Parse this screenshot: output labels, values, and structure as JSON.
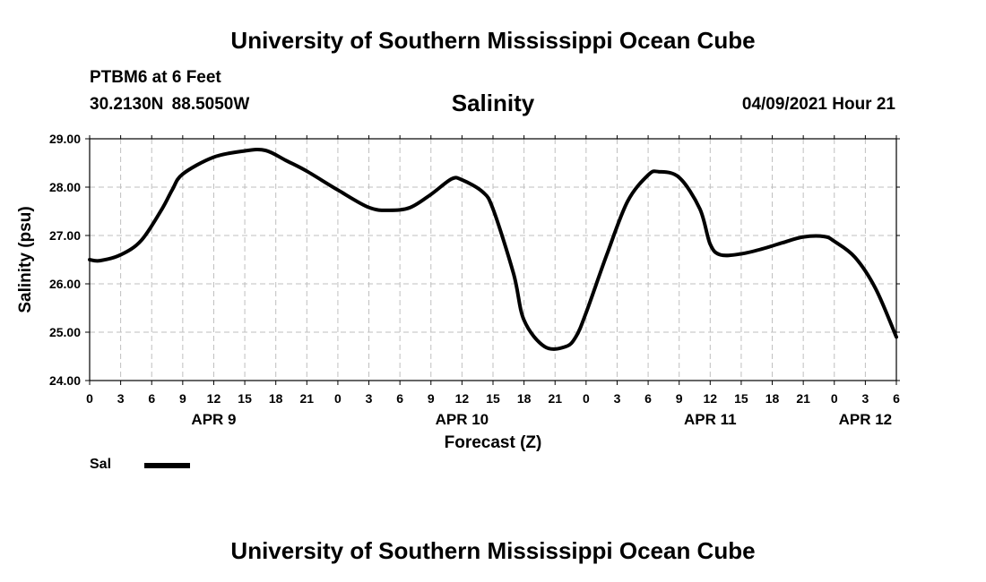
{
  "header": {
    "title_top": "University of Southern Mississippi Ocean Cube",
    "station": "PTBM6 at 6 Feet",
    "coords": "30.2130N  88.5050W",
    "chart_title": "Salinity",
    "date": "04/09/2021 Hour 21"
  },
  "footer": {
    "title_bottom": "University of Southern Mississippi Ocean Cube"
  },
  "colors": {
    "line": "#000000",
    "grid": "#bfbfbf"
  },
  "chart_data": {
    "type": "line",
    "title": "Salinity",
    "xlabel": "Forecast (Z)",
    "ylabel": "Salinity (psu)",
    "ylim": [
      24.0,
      29.0
    ],
    "yticks": [
      "24.00",
      "25.00",
      "26.00",
      "27.00",
      "28.00",
      "29.00"
    ],
    "xlim_hours": [
      0,
      78
    ],
    "xtick_step_hours": 3,
    "xtick_labels": [
      "0",
      "3",
      "6",
      "9",
      "12",
      "15",
      "18",
      "21",
      "0",
      "3",
      "6",
      "9",
      "12",
      "15",
      "18",
      "21",
      "0",
      "3",
      "6",
      "9",
      "12",
      "15",
      "18",
      "21",
      "0",
      "3",
      "6"
    ],
    "date_labels": [
      {
        "label": "APR 9",
        "hour": 12
      },
      {
        "label": "APR 10",
        "hour": 36
      },
      {
        "label": "APR 11",
        "hour": 60
      },
      {
        "label": "APR 12",
        "hour": 75
      }
    ],
    "grid": true,
    "legend": {
      "entries": [
        {
          "name": "Sal"
        }
      ],
      "placement": "bottom-left"
    },
    "series": [
      {
        "name": "Sal",
        "x_hours": [
          0,
          1,
          3,
          5,
          7,
          8,
          9,
          12,
          15,
          17,
          19,
          21,
          24,
          27,
          29,
          31,
          33,
          35,
          36,
          38,
          39,
          41,
          42,
          44,
          46,
          47,
          48,
          50,
          52,
          54,
          55,
          57,
          59,
          60,
          61,
          63,
          65,
          67,
          69,
          71,
          72,
          74,
          76,
          78
        ],
        "values": [
          26.5,
          26.48,
          26.6,
          26.9,
          27.55,
          27.95,
          28.27,
          28.62,
          28.75,
          28.76,
          28.55,
          28.33,
          27.94,
          27.58,
          27.52,
          27.58,
          27.85,
          28.17,
          28.15,
          27.9,
          27.55,
          26.2,
          25.25,
          24.7,
          24.7,
          24.9,
          25.4,
          26.6,
          27.7,
          28.25,
          28.32,
          28.2,
          27.55,
          26.82,
          26.6,
          26.62,
          26.72,
          26.85,
          26.97,
          26.98,
          26.88,
          26.55,
          25.9,
          24.9
        ]
      }
    ]
  }
}
